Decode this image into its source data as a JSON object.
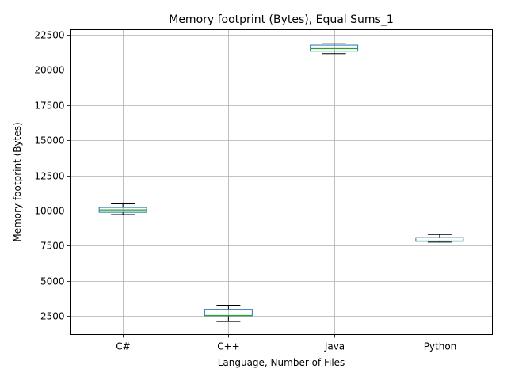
{
  "chart_data": {
    "type": "boxplot",
    "title": "Memory footprint (Bytes), Equal Sums_1",
    "xlabel": "Language, Number of Files",
    "ylabel": "Memory footprint (Bytes)",
    "ylim": [
      1200,
      22850
    ],
    "yticks": [
      2500,
      5000,
      7500,
      10000,
      12500,
      15000,
      17500,
      20000,
      22500
    ],
    "grid": true,
    "categories": [
      "C#",
      "C++",
      "Java",
      "Python"
    ],
    "boxes": [
      {
        "category": "C#",
        "whisker_low": 9720,
        "q1": 9880,
        "median": 10050,
        "q3": 10220,
        "whisker_high": 10480
      },
      {
        "category": "C++",
        "whisker_low": 2120,
        "q1": 2530,
        "median": 2550,
        "q3": 2990,
        "whisker_high": 3280
      },
      {
        "category": "Java",
        "whisker_low": 21150,
        "q1": 21320,
        "median": 21500,
        "q3": 21750,
        "whisker_high": 21850
      },
      {
        "category": "Python",
        "whisker_low": 7760,
        "q1": 7820,
        "median": 7840,
        "q3": 8080,
        "whisker_high": 8300
      }
    ],
    "colors": {
      "box": "#1f77b4",
      "median": "#2ca02c",
      "whisker": "#000000",
      "grid": "#b0b0b0"
    }
  }
}
